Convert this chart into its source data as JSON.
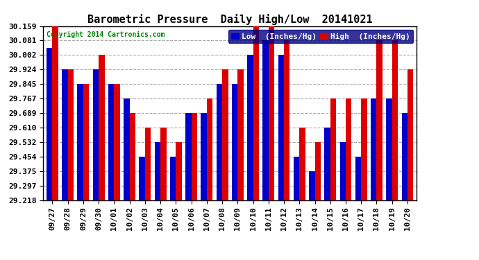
{
  "title": "Barometric Pressure  Daily High/Low  20141021",
  "copyright": "Copyright 2014 Cartronics.com",
  "legend_low": "Low  (Inches/Hg)",
  "legend_high": "High  (Inches/Hg)",
  "dates": [
    "09/27",
    "09/28",
    "09/29",
    "09/30",
    "10/01",
    "10/02",
    "10/03",
    "10/04",
    "10/05",
    "10/06",
    "10/07",
    "10/08",
    "10/09",
    "10/10",
    "10/11",
    "10/12",
    "10/13",
    "10/14",
    "10/15",
    "10/16",
    "10/17",
    "10/18",
    "10/19",
    "10/20"
  ],
  "low": [
    30.04,
    29.924,
    29.845,
    29.924,
    29.845,
    29.767,
    29.454,
    29.532,
    29.454,
    29.689,
    29.689,
    29.845,
    29.845,
    30.002,
    30.081,
    30.002,
    29.454,
    29.375,
    29.61,
    29.532,
    29.454,
    29.767,
    29.767,
    29.689
  ],
  "high": [
    30.159,
    29.924,
    29.845,
    30.002,
    29.845,
    29.689,
    29.61,
    29.61,
    29.532,
    29.689,
    29.767,
    29.924,
    29.924,
    30.159,
    30.159,
    30.081,
    29.61,
    29.532,
    29.767,
    29.767,
    29.767,
    30.081,
    30.081,
    29.924
  ],
  "ymin": 29.218,
  "ymax": 30.159,
  "yticks": [
    29.218,
    29.297,
    29.375,
    29.454,
    29.532,
    29.61,
    29.689,
    29.767,
    29.845,
    29.924,
    30.002,
    30.081,
    30.159
  ],
  "bar_width": 0.38,
  "low_color": "#0000cc",
  "high_color": "#dd0000",
  "bg_color": "#ffffff",
  "plot_bg_color": "#ffffff",
  "grid_color": "#aaaaaa",
  "title_fontsize": 11,
  "tick_fontsize": 8,
  "legend_fontsize": 8
}
